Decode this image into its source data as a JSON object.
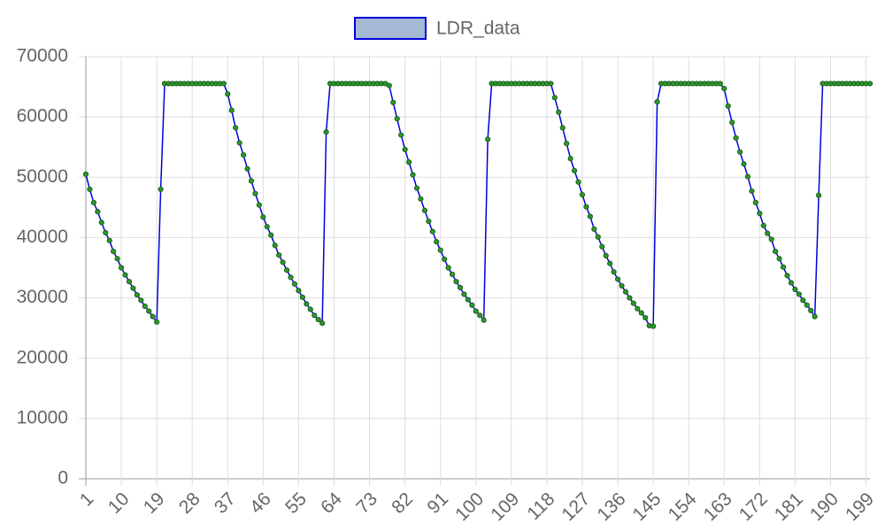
{
  "chart_data": {
    "type": "line",
    "categories": [
      1,
      null,
      null,
      null,
      null,
      null,
      null,
      null,
      null,
      10,
      null,
      null,
      null,
      null,
      null,
      null,
      null,
      null,
      19,
      null,
      null,
      null,
      null,
      null,
      null,
      null,
      null,
      28,
      null,
      null,
      null,
      null,
      null,
      null,
      null,
      null,
      37,
      null,
      null,
      null,
      null,
      null,
      null,
      null,
      null,
      46,
      null,
      null,
      null,
      null,
      null,
      null,
      null,
      null,
      55,
      null,
      null,
      null,
      null,
      null,
      null,
      null,
      null,
      64,
      null,
      null,
      null,
      null,
      null,
      null,
      null,
      null,
      73,
      null,
      null,
      null,
      null,
      null,
      null,
      null,
      null,
      82,
      null,
      null,
      null,
      null,
      null,
      null,
      null,
      null,
      91,
      null,
      null,
      null,
      null,
      null,
      null,
      null,
      null,
      100,
      null,
      null,
      null,
      null,
      null,
      null,
      null,
      null,
      109,
      null,
      null,
      null,
      null,
      null,
      null,
      null,
      null,
      118,
      null,
      null,
      null,
      null,
      null,
      null,
      null,
      null,
      127,
      null,
      null,
      null,
      null,
      null,
      null,
      null,
      null,
      136,
      null,
      null,
      null,
      null,
      null,
      null,
      null,
      null,
      145,
      null,
      null,
      null,
      null,
      null,
      null,
      null,
      null,
      154,
      null,
      null,
      null,
      null,
      null,
      null,
      null,
      null,
      163,
      null,
      null,
      null,
      null,
      null,
      null,
      null,
      null,
      172,
      null,
      null,
      null,
      null,
      null,
      null,
      null,
      null,
      181,
      null,
      null,
      null,
      null,
      null,
      null,
      null,
      null,
      190,
      null,
      null,
      null,
      null,
      null,
      null,
      null,
      null,
      199,
      null
    ],
    "series": [
      {
        "name": "LDR_data",
        "color": "#0000dd",
        "marker_color": "#2a9a2a",
        "legend_fill": "#a5b9d5",
        "values": [
          50500,
          48000,
          45800,
          44300,
          42500,
          40800,
          39500,
          37700,
          36500,
          35000,
          33800,
          32700,
          31600,
          30500,
          29600,
          28600,
          27800,
          26900,
          26000,
          48000,
          65535,
          65535,
          65535,
          65535,
          65535,
          65535,
          65535,
          65535,
          65535,
          65535,
          65535,
          65535,
          65535,
          65535,
          65535,
          65535,
          63800,
          61100,
          58200,
          55700,
          53700,
          51400,
          49400,
          47300,
          45400,
          43400,
          41800,
          40400,
          38700,
          37100,
          35900,
          34600,
          33400,
          32300,
          31200,
          30100,
          29000,
          28100,
          27100,
          26400,
          25800,
          57500,
          65535,
          65535,
          65535,
          65535,
          65535,
          65535,
          65535,
          65535,
          65535,
          65535,
          65535,
          65535,
          65535,
          65535,
          65535,
          65200,
          62400,
          59700,
          57000,
          54600,
          52500,
          50400,
          48200,
          46400,
          44500,
          42700,
          41000,
          39300,
          37900,
          36400,
          35000,
          33900,
          32700,
          31700,
          30600,
          29700,
          28800,
          27800,
          27100,
          26300,
          56300,
          65535,
          65535,
          65535,
          65535,
          65535,
          65535,
          65535,
          65535,
          65535,
          65535,
          65535,
          65535,
          65535,
          65535,
          65535,
          65535,
          63200,
          60800,
          58200,
          55600,
          53100,
          51100,
          49200,
          47100,
          45100,
          43500,
          41400,
          40100,
          38500,
          37000,
          35700,
          34300,
          33100,
          32000,
          31000,
          30000,
          29100,
          28200,
          27500,
          26700,
          25400,
          25300,
          62500,
          65535,
          65535,
          65535,
          65535,
          65535,
          65535,
          65535,
          65535,
          65535,
          65535,
          65535,
          65535,
          65535,
          65535,
          65535,
          65535,
          64700,
          61800,
          59100,
          56500,
          54200,
          52200,
          50100,
          47700,
          45800,
          44000,
          42000,
          40700,
          39700,
          37700,
          36500,
          35100,
          33700,
          32500,
          31400,
          30600,
          29600,
          28800,
          27900,
          26900,
          47000,
          65535,
          65535,
          65535,
          65535,
          65535,
          65535,
          65535,
          65535,
          65535,
          65535,
          65535,
          65535,
          65535
        ]
      }
    ],
    "ylim": [
      0,
      70000
    ],
    "yticks": [
      0,
      10000,
      20000,
      30000,
      40000,
      50000,
      60000,
      70000
    ],
    "grid": true,
    "legend": "top"
  }
}
